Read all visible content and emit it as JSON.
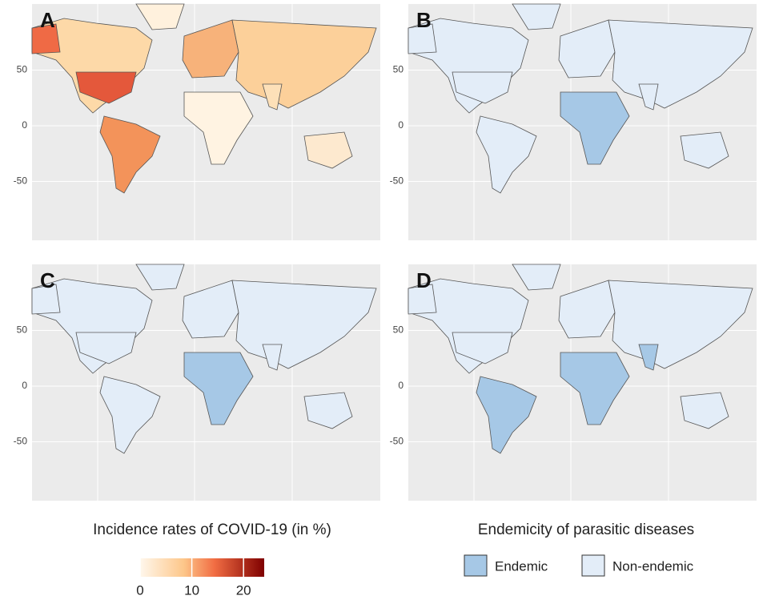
{
  "panels": [
    {
      "label": "A",
      "yticks": [
        50,
        0,
        -50
      ]
    },
    {
      "label": "B",
      "yticks": [
        50,
        0,
        -50
      ]
    },
    {
      "label": "C",
      "yticks": [
        50,
        0,
        -50
      ]
    },
    {
      "label": "D",
      "yticks": [
        50,
        0,
        -50
      ]
    }
  ],
  "colorbar": {
    "title": "Incidence rates of COVID-19  (in %)",
    "clim": [
      0,
      24
    ],
    "ticks": [
      0,
      10,
      20
    ]
  },
  "endemic_legend": {
    "title": "Endemicity of parasitic diseases",
    "items": [
      "Endemic",
      "Non-endemic"
    ]
  }
}
